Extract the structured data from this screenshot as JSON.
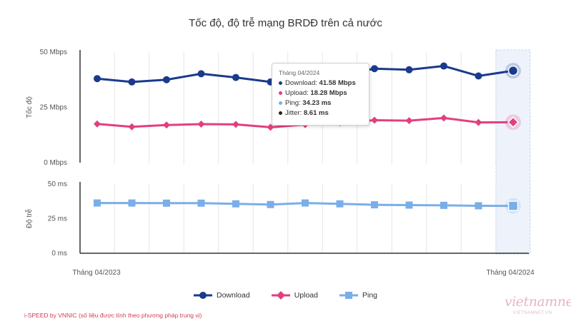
{
  "chart_data": {
    "type": "line",
    "title": "Tốc độ, độ trễ mạng BRDĐ trên cả nước",
    "x_tick_labels": [
      "Tháng 04/2023",
      "Tháng 04/2024"
    ],
    "panels": [
      {
        "name": "speed",
        "ylabel": "Tốc độ",
        "ylim": [
          0,
          50
        ],
        "y_tick_labels": [
          "50 Mbps",
          "25 Mbps",
          "0 Mbps"
        ],
        "y_ticks": [
          50,
          25,
          0
        ],
        "series": [
          {
            "name": "Download",
            "color": "#1a3a8c",
            "marker": "circle",
            "values": [
              38.0,
              36.5,
              37.5,
              40.2,
              38.5,
              36.5,
              37.5,
              39.5,
              42.5,
              42.0,
              43.7,
              39.2,
              41.58
            ]
          },
          {
            "name": "Upload",
            "color": "#e23f7e",
            "marker": "diamond",
            "values": [
              17.5,
              16.2,
              17.0,
              17.4,
              17.3,
              16.0,
              17.2,
              18.0,
              19.2,
              19.0,
              20.2,
              18.2,
              18.28
            ]
          }
        ]
      },
      {
        "name": "latency",
        "ylabel": "Độ trễ",
        "ylim": [
          0,
          50
        ],
        "y_tick_labels": [
          "50 ms",
          "25 ms",
          "0 ms"
        ],
        "y_ticks": [
          50,
          25,
          0
        ],
        "series": [
          {
            "name": "Ping",
            "color": "#7aaee8",
            "marker": "square",
            "values": [
              36.3,
              36.3,
              36.2,
              36.2,
              35.7,
              35.2,
              36.3,
              35.7,
              35.0,
              34.8,
              34.6,
              34.3,
              34.23
            ]
          }
        ]
      }
    ],
    "highlight_index": 12,
    "legend": [
      "Download",
      "Upload",
      "Ping"
    ],
    "legend_position": "bottom"
  },
  "tooltip": {
    "title": "Tháng 04/2024",
    "rows": [
      {
        "label": "Download: ",
        "value": "41.58 Mbps",
        "color": "#1a3a8c"
      },
      {
        "label": "Upload: ",
        "value": "18.28 Mbps",
        "color": "#e23f7e"
      },
      {
        "label": "Ping: ",
        "value": "34.23 ms",
        "color": "#7aaee8"
      },
      {
        "label": "Jitter: ",
        "value": "8.61 ms",
        "color": "#222222"
      }
    ]
  },
  "footer_note": "i-SPEED by VNNIC (số liệu được tính theo phương pháp trung vị)",
  "watermark": {
    "text": "vietnamnet",
    "sub": "VIETNAMNET.VN"
  }
}
